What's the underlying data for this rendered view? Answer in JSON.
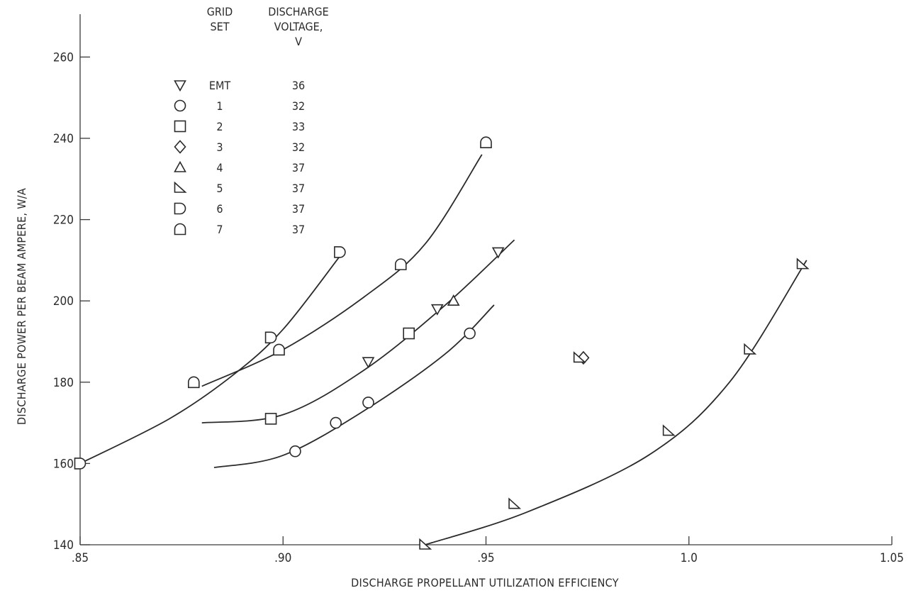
{
  "chart_data": {
    "type": "scatter",
    "xlabel": "DISCHARGE PROPELLANT UTILIZATION EFFICIENCY",
    "ylabel": "DISCHARGE POWER PER BEAM AMPERE, W/A",
    "xlim": [
      0.85,
      1.05
    ],
    "ylim": [
      140,
      270
    ],
    "x_ticks": [
      0.85,
      0.9,
      0.95,
      1.0,
      1.05
    ],
    "x_tick_labels": [
      ".85",
      ".90",
      ".95",
      "1.0",
      "1.05"
    ],
    "y_ticks": [
      140,
      160,
      180,
      200,
      220,
      240,
      260
    ],
    "y_tick_labels": [
      "140",
      "160",
      "180",
      "200",
      "220",
      "240",
      "260"
    ],
    "grid": false,
    "legend": {
      "placement": "top-left",
      "header_col1": [
        "GRID",
        "SET"
      ],
      "header_col2": [
        "DISCHARGE",
        "VOLTAGE,",
        "V"
      ],
      "entries": [
        {
          "grid_set": "EMT",
          "voltage": "36",
          "marker": "triangle-down"
        },
        {
          "grid_set": "1",
          "voltage": "32",
          "marker": "circle"
        },
        {
          "grid_set": "2",
          "voltage": "33",
          "marker": "square"
        },
        {
          "grid_set": "3",
          "voltage": "32",
          "marker": "diamond"
        },
        {
          "grid_set": "4",
          "voltage": "37",
          "marker": "triangle-up"
        },
        {
          "grid_set": "5",
          "voltage": "37",
          "marker": "triangle-right-flag"
        },
        {
          "grid_set": "6",
          "voltage": "37",
          "marker": "half-round-right"
        },
        {
          "grid_set": "7",
          "voltage": "37",
          "marker": "half-round-up"
        }
      ]
    },
    "series": [
      {
        "marker": "half-round-right",
        "x": [
          0.85,
          0.897,
          0.914
        ],
        "y": [
          160,
          191,
          212
        ],
        "curve": [
          [
            0.85,
            160
          ],
          [
            0.872,
            171
          ],
          [
            0.888,
            182
          ],
          [
            0.9,
            193
          ],
          [
            0.914,
            211
          ]
        ]
      },
      {
        "marker": "half-round-up",
        "x": [
          0.878,
          0.899,
          0.929,
          0.95
        ],
        "y": [
          180,
          188,
          209,
          239
        ],
        "curve": [
          [
            0.88,
            179
          ],
          [
            0.9,
            188
          ],
          [
            0.92,
            201
          ],
          [
            0.935,
            214
          ],
          [
            0.949,
            236
          ]
        ]
      },
      {
        "marker": "triangle-down",
        "x": [
          0.921,
          0.938,
          0.953
        ],
        "y": [
          185,
          198,
          212
        ],
        "curve": [
          [
            0.88,
            170
          ],
          [
            0.9,
            172
          ],
          [
            0.92,
            183
          ],
          [
            0.94,
            199
          ],
          [
            0.957,
            215
          ]
        ]
      },
      {
        "marker": "square",
        "x": [
          0.897,
          0.931
        ],
        "y": [
          171,
          192
        ],
        "curve": []
      },
      {
        "marker": "triangle-up",
        "x": [
          0.942
        ],
        "y": [
          200
        ],
        "curve": []
      },
      {
        "marker": "circle",
        "x": [
          0.903,
          0.913,
          0.921,
          0.946
        ],
        "y": [
          163,
          170,
          175,
          192
        ],
        "curve": [
          [
            0.883,
            159
          ],
          [
            0.9,
            162
          ],
          [
            0.92,
            173
          ],
          [
            0.94,
            187
          ],
          [
            0.952,
            199
          ]
        ]
      },
      {
        "marker": "diamond",
        "x": [
          0.974
        ],
        "y": [
          186
        ],
        "curve": []
      },
      {
        "marker": "triangle-right-flag",
        "x": [
          0.973
        ],
        "y": [
          186
        ],
        "curve": []
      },
      {
        "marker": "triangle-right-flag",
        "x": [
          0.935,
          0.957,
          0.995,
          1.015,
          1.028
        ],
        "y": [
          140,
          150,
          168,
          188,
          209
        ],
        "curve": [
          [
            0.935,
            140
          ],
          [
            0.96,
            148
          ],
          [
            0.99,
            162
          ],
          [
            1.01,
            180
          ],
          [
            1.029,
            210
          ]
        ]
      }
    ]
  }
}
